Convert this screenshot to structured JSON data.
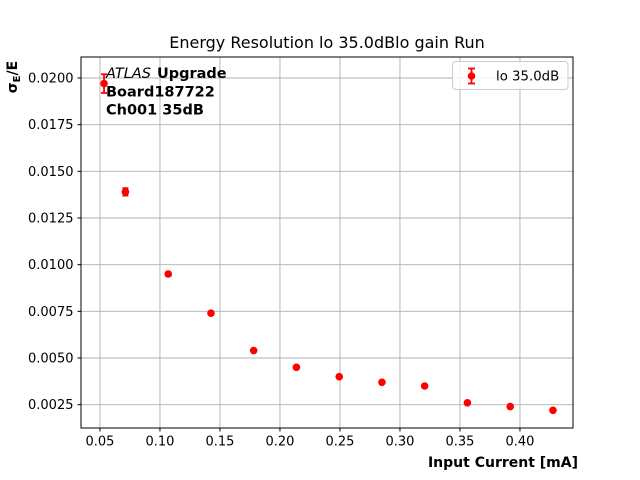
{
  "figure": {
    "background": "#ffffff"
  },
  "annotation": {
    "line1_italic": "ATLAS",
    "line1_bold": "Upgrade",
    "line2": "Board187722",
    "line3": "Ch001 35dB"
  },
  "legend": {
    "position": "upper right",
    "entries": [
      {
        "label": "lo 35.0dB",
        "marker": "errorbar-circle",
        "color": "#ff0000"
      }
    ]
  },
  "chart_data": {
    "type": "scatter",
    "title": "Energy Resolution lo 35.0dBlo gain Run",
    "xlabel": "Input Current [mA]",
    "ylabel": "σE/E",
    "ylabel_sigma": "σ",
    "ylabel_sub": "E",
    "ylabel_rest": "/E",
    "xlim": [
      0.0342,
      0.4442
    ],
    "ylim": [
      0.00125,
      0.021125
    ],
    "grid": true,
    "grid_color": "#b0b0b0",
    "axis_color": "#000000",
    "legend_position": "upper right",
    "xticks": {
      "values": [
        0.05,
        0.1,
        0.15,
        0.2,
        0.25,
        0.3,
        0.35,
        0.4
      ],
      "labels": [
        "0.05",
        "0.10",
        "0.15",
        "0.20",
        "0.25",
        "0.30",
        "0.35",
        "0.40"
      ]
    },
    "yticks": {
      "values": [
        0.0025,
        0.005,
        0.0075,
        0.01,
        0.0125,
        0.015,
        0.0175,
        0.02
      ],
      "labels": [
        "0.0025",
        "0.0050",
        "0.0075",
        "0.0100",
        "0.0125",
        "0.0150",
        "0.0175",
        "0.0200"
      ]
    },
    "series": [
      {
        "name": "lo 35.0dB",
        "color": "#ff0000",
        "marker": "circle",
        "x": [
          0.0534,
          0.0712,
          0.1069,
          0.1425,
          0.1781,
          0.2137,
          0.2494,
          0.285,
          0.3206,
          0.3562,
          0.3919,
          0.4275
        ],
        "y": [
          0.0197,
          0.0139,
          0.0095,
          0.0074,
          0.0054,
          0.0045,
          0.004,
          0.0037,
          0.0035,
          0.0026,
          0.0024,
          0.0022
        ],
        "yerr": [
          0.0005,
          0.0002,
          0.0001,
          8e-05,
          6e-05,
          5e-05,
          5e-05,
          4e-05,
          4e-05,
          3e-05,
          3e-05,
          3e-05
        ]
      }
    ]
  }
}
